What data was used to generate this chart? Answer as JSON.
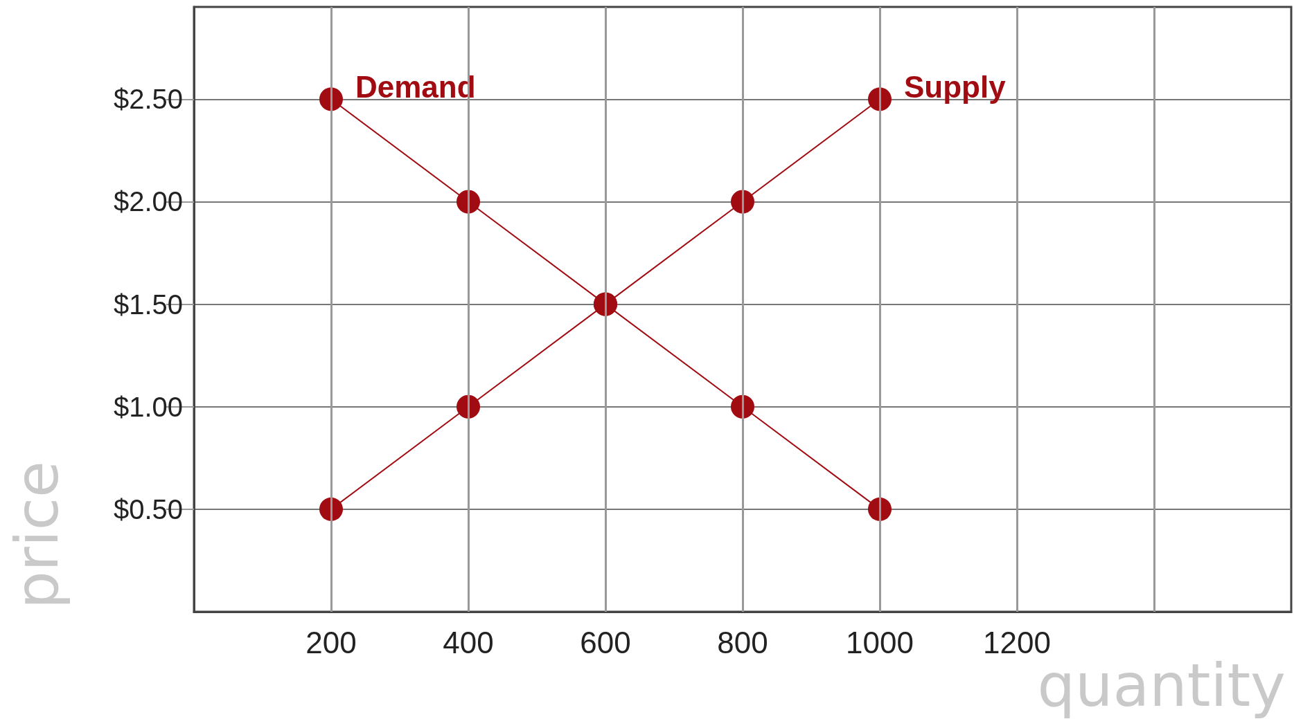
{
  "chart_data": {
    "type": "line",
    "xlabel": "quantity",
    "ylabel": "price",
    "x": [
      200,
      400,
      600,
      800,
      1000
    ],
    "series": [
      {
        "name": "Demand",
        "color": "#a00c12",
        "values": [
          2.5,
          2.0,
          1.5,
          1.0,
          0.5
        ]
      },
      {
        "name": "Supply",
        "color": "#a00c12",
        "values": [
          0.5,
          1.0,
          1.5,
          2.0,
          2.5
        ]
      }
    ],
    "xlim": [
      0,
      1600
    ],
    "xticks": [
      200,
      400,
      600,
      800,
      1000,
      1200,
      {
        "value": 1400,
        "label": null
      }
    ],
    "ylim": [
      0,
      2.95
    ],
    "yticks": [
      {
        "value": 0.5,
        "label": "$0.50"
      },
      {
        "value": 1.0,
        "label": "$1.00"
      },
      {
        "value": 1.5,
        "label": "$1.50"
      },
      {
        "value": 2.0,
        "label": "$2.00"
      },
      {
        "value": 2.5,
        "label": "$2.50"
      }
    ],
    "grid": true,
    "legend": false,
    "marker": "circle",
    "line_style": "solid"
  }
}
